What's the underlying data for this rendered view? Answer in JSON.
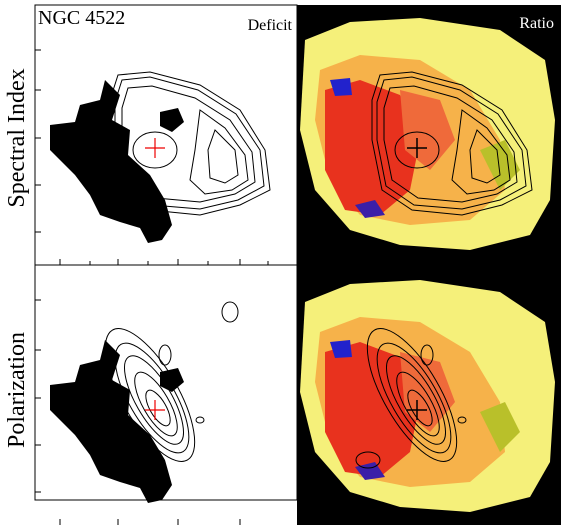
{
  "panels": {
    "object": "NGC 4522",
    "left_title": "Deficit",
    "right_title": "Ratio",
    "top_row": "Spectral Index",
    "bottom_row": "Polarization"
  }
}
